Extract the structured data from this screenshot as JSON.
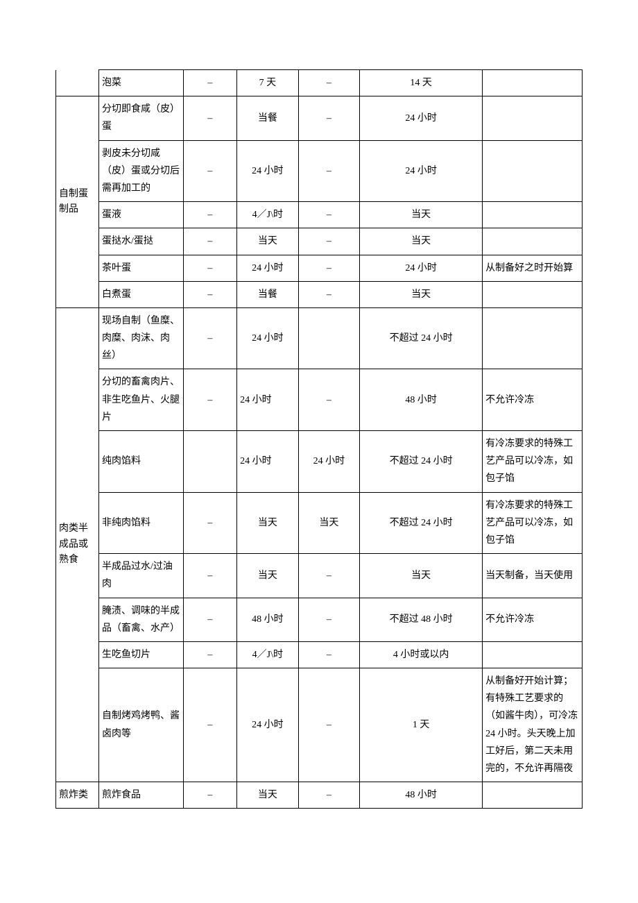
{
  "table": {
    "dash": "–",
    "rows": [
      {
        "category": "",
        "item": "泡菜",
        "c3": "–",
        "c4": "7 天",
        "c5": "–",
        "c6": "14 天",
        "note": ""
      },
      {
        "category": "自制蛋制品",
        "catRowspan": 6,
        "item": "分切即食咸（皮）蛋",
        "c3": "–",
        "c4": "当餐",
        "c5": "–",
        "c6": "24 小时",
        "note": ""
      },
      {
        "item": "剥皮未分切咸（皮）蛋或分切后需再加工的",
        "c3": "–",
        "c4": "24 小时",
        "c5": "–",
        "c6": "24 小时",
        "note": ""
      },
      {
        "item": "蛋液",
        "c3": "–",
        "c4": "4／J\\时",
        "c5": "–",
        "c6": "当天",
        "note": ""
      },
      {
        "item": "蛋挞水/蛋挞",
        "c3": "–",
        "c4": "当天",
        "c5": "–",
        "c6": "当天",
        "note": ""
      },
      {
        "item": "茶叶蛋",
        "c3": "–",
        "c4": "24 小时",
        "c5": "–",
        "c6": "24 小时",
        "note": "从制备好之时开始算"
      },
      {
        "item": "白煮蛋",
        "c3": "–",
        "c4": "当餐",
        "c5": "–",
        "c6": "当天",
        "note": ""
      },
      {
        "category": "肉类半成品或熟食",
        "catRowspan": 8,
        "item": "现场自制（鱼糜、肉糜、肉沫、肉丝）",
        "c3": "–",
        "c4": "24 小时",
        "c5": "",
        "c6": "不超过 24 小时",
        "note": ""
      },
      {
        "item": "分切的畜禽肉片、非生吃鱼片、火腿片",
        "c3": "–",
        "c4": "24 小时",
        "c5": "–",
        "c6": "48 小时",
        "note": "不允许冷冻"
      },
      {
        "item": "纯肉馅料",
        "c3": "",
        "c4": "24 小时",
        "c5": "24 小时",
        "c6": "不超过 24 小时",
        "note": "有冷冻要求的特殊工艺产品可以冷冻，如包子馅"
      },
      {
        "item": "非纯肉馅料",
        "c3": "–",
        "c4": "当天",
        "c5": "当天",
        "c6": "不超过 24 小时",
        "note": "有冷冻要求的特殊工艺产品可以冷冻，如包子馅"
      },
      {
        "item": "半成品过水/过油肉",
        "c3": "–",
        "c4": "当天",
        "c5": "–",
        "c6": "当天",
        "note": "当天制备，当天使用"
      },
      {
        "item": "腌渍、调味的半成品（畜禽、水产）",
        "c3": "–",
        "c4": "48 小时",
        "c5": "–",
        "c6": "不超过 48 小时",
        "note": "不允许冷冻"
      },
      {
        "item": "生吃鱼切片",
        "c3": "–",
        "c4": "4／J\\时",
        "c5": "–",
        "c6": "4 小时或以内",
        "note": ""
      },
      {
        "item": "自制烤鸡烤鸭、酱卤肉等",
        "c3": "–",
        "c4": "24 小时",
        "c5": "–",
        "c6": "1 天",
        "note": "从制备好开始计算；有特殊工艺要求的（如酱牛肉），可冷冻 24 小时。头天晚上加工好后，第二天未用完的，不允许再隔夜"
      },
      {
        "category": "煎炸类",
        "item": "煎炸食品",
        "c3": "–",
        "c4": "当天",
        "c5": "–",
        "c6": "48 小时",
        "note": ""
      }
    ]
  }
}
